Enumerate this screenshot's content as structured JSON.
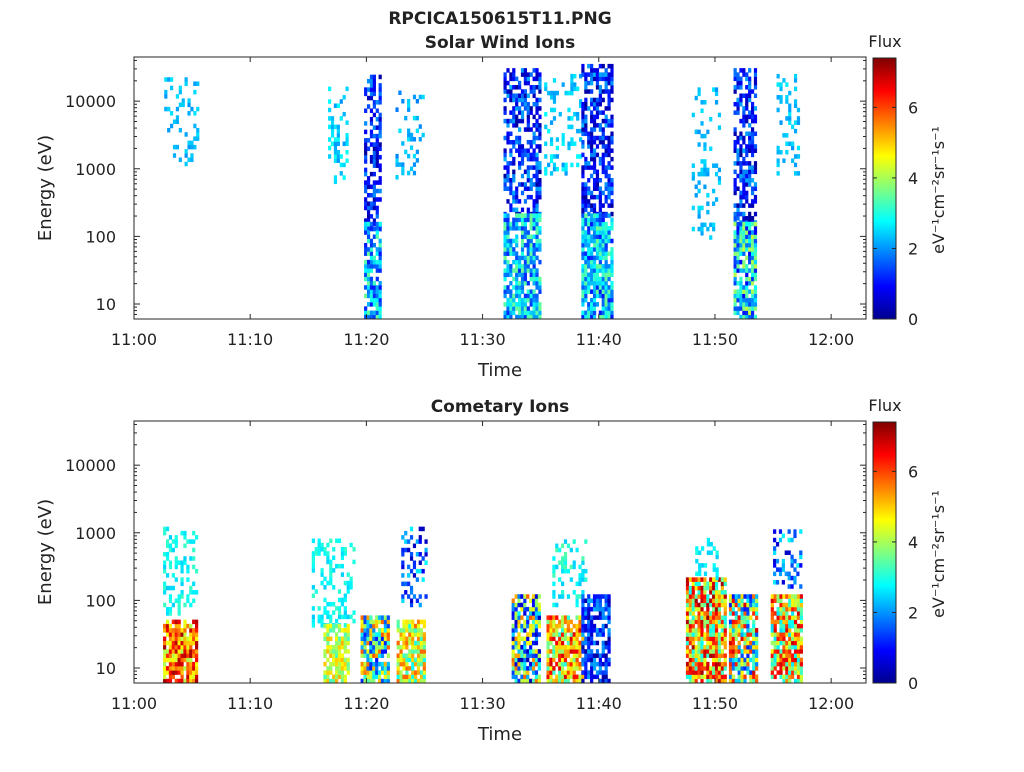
{
  "figure": {
    "title": "RPCICA150615T11.PNG"
  },
  "chart_data": [
    {
      "type": "heatmap",
      "title": "Solar Wind Ions",
      "xlabel": "Time",
      "ylabel": "Energy (eV)",
      "x_ticks": [
        "11:00",
        "11:10",
        "11:20",
        "11:30",
        "11:40",
        "11:50",
        "12:00"
      ],
      "x_range_minutes": [
        0,
        63
      ],
      "y_scale": "log",
      "y_ticks": [
        "10",
        "100",
        "1000",
        "10000"
      ],
      "y_range": [
        6,
        45000
      ],
      "colorbar": {
        "title": "Flux",
        "label": "eV⁻¹cm⁻²sr⁻¹s⁻¹",
        "ticks": [
          "0",
          "2",
          "4",
          "6"
        ],
        "range": [
          0,
          7.4
        ]
      },
      "blobs": [
        {
          "t": [
            2.6,
            5.6
          ],
          "e": [
            1100,
            20000
          ],
          "flux": [
            2.0,
            2.6
          ],
          "density": 0.22
        },
        {
          "t": [
            16.7,
            18.3
          ],
          "e": [
            600,
            15000
          ],
          "flux": [
            2.0,
            2.9
          ],
          "density": 0.25
        },
        {
          "t": [
            19.8,
            21.3
          ],
          "e": [
            120,
            22000
          ],
          "flux": [
            0.2,
            2.0
          ],
          "density": 0.6
        },
        {
          "t": [
            19.8,
            21.3
          ],
          "e": [
            6,
            150
          ],
          "flux": [
            1.0,
            3.6
          ],
          "density": 0.85
        },
        {
          "t": [
            22.5,
            25.0
          ],
          "e": [
            700,
            14000
          ],
          "flux": [
            1.8,
            2.6
          ],
          "density": 0.2
        },
        {
          "t": [
            31.8,
            34.9
          ],
          "e": [
            200,
            30000
          ],
          "flux": [
            0.2,
            2.2
          ],
          "density": 0.55
        },
        {
          "t": [
            31.8,
            34.9
          ],
          "e": [
            6,
            200
          ],
          "flux": [
            1.2,
            3.6
          ],
          "density": 0.8
        },
        {
          "t": [
            35.3,
            38.4
          ],
          "e": [
            800,
            25000
          ],
          "flux": [
            2.0,
            2.8
          ],
          "density": 0.25
        },
        {
          "t": [
            38.5,
            41.1
          ],
          "e": [
            200,
            35000
          ],
          "flux": [
            0.2,
            2.2
          ],
          "density": 0.6
        },
        {
          "t": [
            38.5,
            41.1
          ],
          "e": [
            6,
            200
          ],
          "flux": [
            1.0,
            3.6
          ],
          "density": 0.85
        },
        {
          "t": [
            48.0,
            50.3
          ],
          "e": [
            90,
            15000
          ],
          "flux": [
            2.0,
            2.6
          ],
          "density": 0.2
        },
        {
          "t": [
            51.6,
            53.6
          ],
          "e": [
            150,
            30000
          ],
          "flux": [
            0.2,
            2.2
          ],
          "density": 0.6
        },
        {
          "t": [
            51.6,
            53.6
          ],
          "e": [
            6,
            150
          ],
          "flux": [
            0.8,
            4.2
          ],
          "density": 0.85
        },
        {
          "t": [
            55.3,
            57.2
          ],
          "e": [
            800,
            25000
          ],
          "flux": [
            2.0,
            2.7
          ],
          "density": 0.25
        }
      ]
    },
    {
      "type": "heatmap",
      "title": "Cometary Ions",
      "xlabel": "Time",
      "ylabel": "Energy (eV)",
      "x_ticks": [
        "11:00",
        "11:10",
        "11:20",
        "11:30",
        "11:40",
        "11:50",
        "12:00"
      ],
      "x_range_minutes": [
        0,
        63
      ],
      "y_scale": "log",
      "y_ticks": [
        "10",
        "100",
        "1000",
        "10000"
      ],
      "y_range": [
        6,
        45000
      ],
      "colorbar": {
        "title": "Flux",
        "label": "eV⁻¹cm⁻²sr⁻¹s⁻¹",
        "ticks": [
          "0",
          "2",
          "4",
          "6"
        ],
        "range": [
          0,
          7.4
        ]
      },
      "blobs": [
        {
          "t": [
            2.5,
            5.5
          ],
          "e": [
            6,
            45
          ],
          "flux": [
            4.0,
            7.2
          ],
          "density": 0.9
        },
        {
          "t": [
            2.5,
            5.5
          ],
          "e": [
            60,
            1200
          ],
          "flux": [
            2.4,
            3.2
          ],
          "density": 0.35
        },
        {
          "t": [
            15.3,
            19.0
          ],
          "e": [
            40,
            800
          ],
          "flux": [
            2.4,
            3.2
          ],
          "density": 0.3
        },
        {
          "t": [
            16.3,
            18.5
          ],
          "e": [
            6,
            40
          ],
          "flux": [
            3.2,
            5.2
          ],
          "density": 0.8
        },
        {
          "t": [
            19.5,
            21.8
          ],
          "e": [
            6,
            60
          ],
          "flux": [
            1.0,
            6.0
          ],
          "density": 0.9
        },
        {
          "t": [
            22.6,
            25.1
          ],
          "e": [
            6,
            50
          ],
          "flux": [
            2.8,
            5.8
          ],
          "density": 0.85
        },
        {
          "t": [
            23.0,
            25.1
          ],
          "e": [
            80,
            1200
          ],
          "flux": [
            0.4,
            2.8
          ],
          "density": 0.3
        },
        {
          "t": [
            32.5,
            35.0
          ],
          "e": [
            6,
            120
          ],
          "flux": [
            0.3,
            6.0
          ],
          "density": 0.8
        },
        {
          "t": [
            35.5,
            38.6
          ],
          "e": [
            6,
            60
          ],
          "flux": [
            3.0,
            6.8
          ],
          "density": 0.85
        },
        {
          "t": [
            36.0,
            38.8
          ],
          "e": [
            80,
            800
          ],
          "flux": [
            2.4,
            3.4
          ],
          "density": 0.3
        },
        {
          "t": [
            38.5,
            41.0
          ],
          "e": [
            6,
            120
          ],
          "flux": [
            0.2,
            2.2
          ],
          "density": 0.7
        },
        {
          "t": [
            47.5,
            50.8
          ],
          "e": [
            6,
            200
          ],
          "flux": [
            2.8,
            7.2
          ],
          "density": 0.9
        },
        {
          "t": [
            48.3,
            50.3
          ],
          "e": [
            200,
            800
          ],
          "flux": [
            2.4,
            3.0
          ],
          "density": 0.3
        },
        {
          "t": [
            51.2,
            53.6
          ],
          "e": [
            6,
            120
          ],
          "flux": [
            1.0,
            6.8
          ],
          "density": 0.85
        },
        {
          "t": [
            54.8,
            57.4
          ],
          "e": [
            6,
            120
          ],
          "flux": [
            2.5,
            6.8
          ],
          "density": 0.85
        },
        {
          "t": [
            55.0,
            57.4
          ],
          "e": [
            150,
            1000
          ],
          "flux": [
            0.4,
            3.0
          ],
          "density": 0.3
        }
      ]
    }
  ]
}
